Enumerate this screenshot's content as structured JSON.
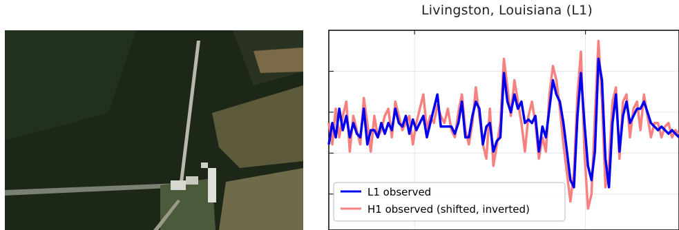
{
  "photo": {
    "subject": "aerial photograph of detector site",
    "colors": {
      "forest": "#1f2a1a",
      "clearing": "#6b6a46",
      "road": "#9a9a8a",
      "buildings": "#c9c9c2"
    }
  },
  "chart_data": {
    "type": "line",
    "title": "Livingston, Louisiana (L1)",
    "xlabel": "",
    "ylabel": "",
    "grid": true,
    "legend_position": "bottom-left",
    "x_ticks_count": 3,
    "y_ticks_count": 5,
    "xlim": [
      0,
      100
    ],
    "ylim": [
      -1.4,
      1.4
    ],
    "series": [
      {
        "name": "L1 observed",
        "color": "#0000ee",
        "x": [
          0,
          1,
          2,
          3,
          4,
          5,
          6,
          7,
          8,
          9,
          10,
          11,
          12,
          13,
          14,
          15,
          16,
          17,
          18,
          19,
          20,
          21,
          22,
          23,
          24,
          25,
          26,
          27,
          28,
          29,
          30,
          31,
          32,
          33,
          34,
          35,
          36,
          37,
          38,
          39,
          40,
          41,
          42,
          43,
          44,
          45,
          46,
          47,
          48,
          49,
          50,
          51,
          52,
          53,
          54,
          55,
          56,
          57,
          58,
          59,
          60,
          61,
          62,
          63,
          64,
          65,
          66,
          67,
          68,
          69,
          70,
          71,
          72,
          73,
          74,
          75,
          76,
          77,
          78,
          79,
          80,
          81,
          82,
          83,
          84,
          85,
          86,
          87,
          88,
          89,
          90,
          91,
          92,
          93,
          94,
          95,
          96,
          97,
          98,
          99,
          100
        ],
        "y": [
          -0.2,
          0.1,
          -0.1,
          0.3,
          0.0,
          0.2,
          -0.1,
          0.1,
          -0.05,
          -0.1,
          0.3,
          -0.2,
          0.0,
          0.0,
          -0.1,
          0.1,
          -0.05,
          0.1,
          0.0,
          0.3,
          0.1,
          0.05,
          0.2,
          -0.05,
          0.15,
          0.0,
          0.1,
          0.2,
          -0.1,
          0.1,
          0.3,
          0.5,
          0.05,
          0.05,
          0.05,
          0.05,
          -0.05,
          0.1,
          0.4,
          -0.1,
          -0.1,
          0.2,
          0.4,
          0.3,
          -0.2,
          0.05,
          0.1,
          -0.3,
          -0.15,
          -0.1,
          0.8,
          0.4,
          0.25,
          0.5,
          0.3,
          0.4,
          0.1,
          0.15,
          0.1,
          0.2,
          -0.3,
          0.05,
          -0.1,
          0.3,
          0.7,
          0.5,
          0.4,
          0.1,
          -0.3,
          -0.7,
          -0.8,
          0.2,
          0.8,
          0.1,
          -0.5,
          -0.7,
          -0.3,
          1.0,
          0.7,
          -0.4,
          -0.8,
          0.1,
          0.5,
          -0.3,
          0.2,
          0.4,
          0.1,
          0.2,
          0.3,
          0.3,
          0.4,
          0.25,
          0.1,
          0.05,
          0.0,
          0.05,
          0.0,
          -0.05,
          0.0,
          -0.05,
          -0.1
        ]
      },
      {
        "name": "H1 observed (shifted, inverted)",
        "color": "#f78080",
        "x": [
          0,
          1,
          2,
          3,
          4,
          5,
          6,
          7,
          8,
          9,
          10,
          11,
          12,
          13,
          14,
          15,
          16,
          17,
          18,
          19,
          20,
          21,
          22,
          23,
          24,
          25,
          26,
          27,
          28,
          29,
          30,
          31,
          32,
          33,
          34,
          35,
          36,
          37,
          38,
          39,
          40,
          41,
          42,
          43,
          44,
          45,
          46,
          47,
          48,
          49,
          50,
          51,
          52,
          53,
          54,
          55,
          56,
          57,
          58,
          59,
          60,
          61,
          62,
          63,
          64,
          65,
          66,
          67,
          68,
          69,
          70,
          71,
          72,
          73,
          74,
          75,
          76,
          77,
          78,
          79,
          80,
          81,
          82,
          83,
          84,
          85,
          86,
          87,
          88,
          89,
          90,
          91,
          92,
          93,
          94,
          95,
          96,
          97,
          98,
          99,
          100
        ],
        "y": [
          0.1,
          -0.2,
          0.3,
          -0.1,
          0.2,
          0.4,
          -0.3,
          0.2,
          0.0,
          -0.2,
          0.45,
          0.1,
          -0.3,
          0.2,
          -0.1,
          0.0,
          0.2,
          0.3,
          -0.1,
          0.4,
          0.2,
          0.0,
          0.1,
          0.2,
          -0.2,
          0.1,
          0.3,
          0.5,
          0.0,
          0.2,
          0.1,
          0.35,
          0.2,
          0.1,
          0.3,
          0.0,
          -0.1,
          0.25,
          0.5,
          0.0,
          -0.2,
          0.1,
          0.6,
          0.2,
          -0.2,
          -0.4,
          0.3,
          -0.5,
          -0.2,
          0.1,
          1.0,
          0.6,
          0.2,
          0.7,
          0.4,
          0.1,
          -0.3,
          0.2,
          0.4,
          0.1,
          -0.4,
          -0.1,
          -0.3,
          0.5,
          0.9,
          0.7,
          0.3,
          -0.2,
          -0.6,
          -1.0,
          -0.6,
          0.5,
          1.1,
          -0.3,
          -1.1,
          -0.9,
          0.2,
          1.25,
          0.4,
          -0.8,
          -0.5,
          0.4,
          0.6,
          -0.4,
          0.4,
          0.5,
          -0.1,
          0.3,
          0.4,
          0.0,
          0.5,
          0.2,
          -0.1,
          0.1,
          0.1,
          -0.1,
          0.05,
          0.1,
          -0.1,
          0.0,
          -0.05
        ]
      }
    ]
  }
}
